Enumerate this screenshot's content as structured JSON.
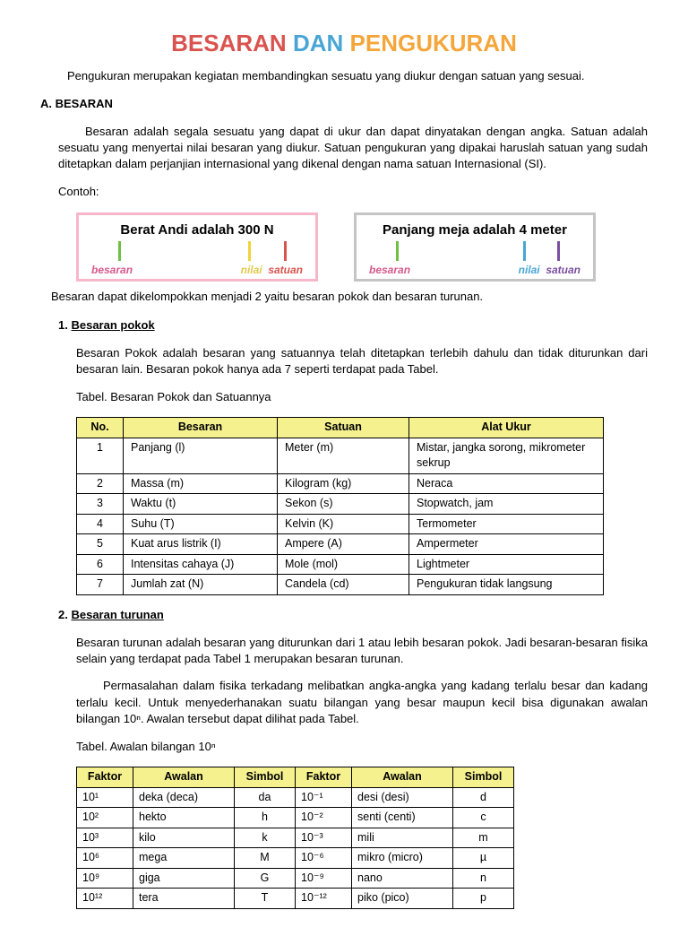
{
  "title": {
    "w1": "BESARAN",
    "w2": "DAN",
    "w3": "PENGUKURAN"
  },
  "intro": "Pengukuran merupakan kegiatan membandingkan sesuatu yang diukur dengan satuan yang sesuai.",
  "sectionA": {
    "head": "A. BESARAN",
    "p1": "Besaran adalah segala sesuatu yang dapat di ukur dan dapat dinyatakan dengan angka. Satuan adalah sesuatu yang menyertai nilai besaran yang diukur. Satuan pengukuran yang dipakai haruslah satuan yang sudah ditetapkan dalam perjanjian internasional yang dikenal dengan nama satuan Internasional (SI).",
    "contoh": "Contoh:",
    "ex1": {
      "text": "Berat Andi adalah 300 N",
      "labels": [
        "besaran",
        "nilai",
        "satuan"
      ],
      "tickColors": [
        "#6fbf44",
        "#f0d23c",
        "#d9534f"
      ],
      "tickPos": [
        30,
        175,
        215
      ]
    },
    "ex2": {
      "text": "Panjang meja adalah 4 meter",
      "labels": [
        "besaran",
        "nilai",
        "satuan"
      ],
      "tickColors": [
        "#6fbf44",
        "#49a6d4",
        "#7b4fa0"
      ],
      "tickPos": [
        30,
        172,
        210
      ]
    },
    "p2": "Besaran dapat dikelompokkan menjadi 2 yaitu besaran pokok dan besaran turunan.",
    "sub1": {
      "num": "1.",
      "title": "Besaran pokok",
      "p": "Besaran Pokok adalah besaran yang satuannya telah ditetapkan terlebih dahulu dan tidak diturunkan dari besaran lain. Besaran pokok hanya ada 7 seperti terdapat pada Tabel.",
      "tcap": "Tabel. Besaran Pokok dan Satuannya",
      "headers": [
        "No.",
        "Besaran",
        "Satuan",
        "Alat Ukur"
      ],
      "rows": [
        [
          "1",
          "Panjang (l)",
          "Meter (m)",
          "Mistar, jangka sorong, mikrometer sekrup"
        ],
        [
          "2",
          "Massa (m)",
          "Kilogram (kg)",
          "Neraca"
        ],
        [
          "3",
          "Waktu (t)",
          "Sekon (s)",
          "Stopwatch, jam"
        ],
        [
          "4",
          "Suhu (T)",
          "Kelvin (K)",
          "Termometer"
        ],
        [
          "5",
          "Kuat arus listrik (I)",
          "Ampere (A)",
          "Ampermeter"
        ],
        [
          "6",
          "Intensitas cahaya (J)",
          "Mole (mol)",
          "Lightmeter"
        ],
        [
          "7",
          "Jumlah zat (N)",
          "Candela (cd)",
          "Pengukuran tidak langsung"
        ]
      ]
    },
    "sub2": {
      "num": "2.",
      "title": "Besaran turunan",
      "p1": "Besaran turunan adalah besaran yang diturunkan dari 1 atau lebih besaran pokok. Jadi besaran-besaran fisika selain yang terdapat pada Tabel 1 merupakan besaran turunan.",
      "p2": "Permasalahan dalam fisika terkadang melibatkan angka-angka yang kadang terlalu besar dan kadang terlalu kecil. Untuk menyederhanakan suatu bilangan yang besar maupun kecil bisa digunakan awalan bilangan 10ⁿ. Awalan tersebut dapat dilihat pada Tabel.",
      "tcap": "Tabel. Awalan bilangan 10ⁿ",
      "headers": [
        "Faktor",
        "Awalan",
        "Simbol",
        "Faktor",
        "Awalan",
        "Simbol"
      ],
      "rows": [
        [
          "10¹",
          "deka (deca)",
          "da",
          "10⁻¹",
          "desi (desi)",
          "d"
        ],
        [
          "10²",
          "hekto",
          "h",
          "10⁻²",
          "senti (centi)",
          "c"
        ],
        [
          "10³",
          "kilo",
          "k",
          "10⁻³",
          "mili",
          "m"
        ],
        [
          "10⁶",
          "mega",
          "M",
          "10⁻⁶",
          "mikro (micro)",
          "µ"
        ],
        [
          "10⁹",
          "giga",
          "G",
          "10⁻⁹",
          "nano",
          "n"
        ],
        [
          "10¹²",
          "tera",
          "T",
          "10⁻¹²",
          "piko (pico)",
          "p"
        ]
      ]
    }
  }
}
